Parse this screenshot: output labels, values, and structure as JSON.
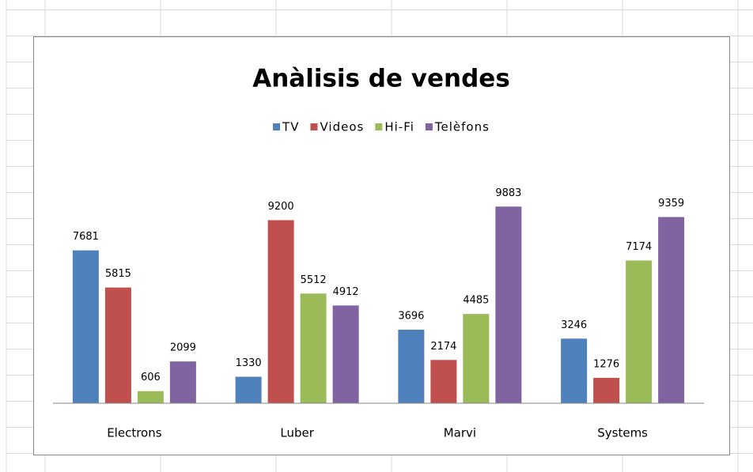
{
  "chart_data": {
    "type": "bar",
    "title": "Anàlisis de vendes",
    "categories": [
      "Electrons",
      "Luber",
      "Marvi",
      "Systems"
    ],
    "series": [
      {
        "name": "TV",
        "color": "#4f81bd",
        "values": [
          7681,
          1330,
          3696,
          3246
        ]
      },
      {
        "name": "Videos",
        "color": "#c0504d",
        "values": [
          5815,
          9200,
          2174,
          1276
        ]
      },
      {
        "name": "Hi-Fi",
        "color": "#9bbb59",
        "values": [
          606,
          5512,
          4485,
          7174
        ]
      },
      {
        "name": "Telèfons",
        "color": "#8064a2",
        "values": [
          2099,
          4912,
          9883,
          9359
        ]
      }
    ],
    "ylim": [
      0,
      12000
    ],
    "legend": "top"
  }
}
